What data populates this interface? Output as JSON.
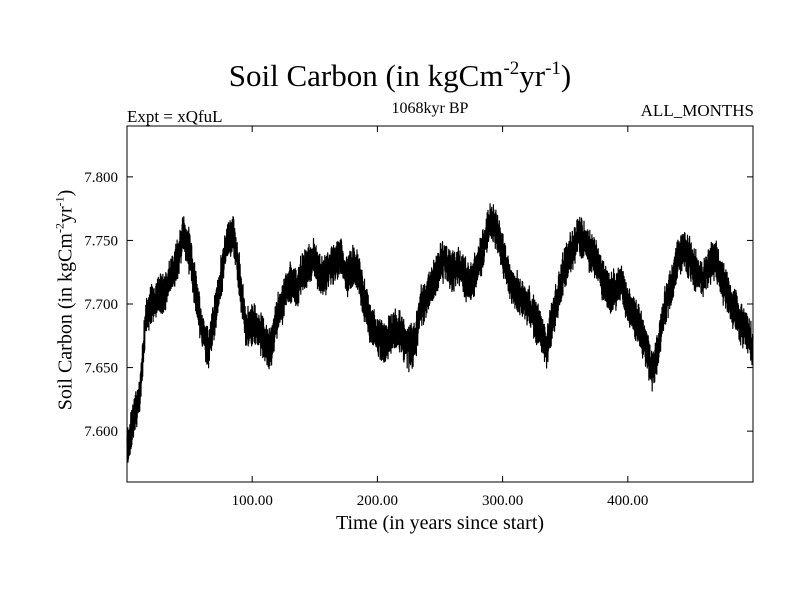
{
  "chart_data": {
    "type": "line",
    "title_main": "Soil Carbon (in kgCm",
    "title_exp1": "-2",
    "title_mid": "yr",
    "title_exp2": "-1",
    "title_end": ")",
    "subtitle_left": "Expt = xQfuL",
    "subtitle_center": "1068kyr BP",
    "subtitle_right": "ALL_MONTHS",
    "xlabel": "Time (in years since start)",
    "ylabel_main": "Soil Carbon (in kgCm",
    "ylabel_exp1": "-2",
    "ylabel_mid": "yr",
    "ylabel_exp2": "-1",
    "ylabel_end": ")",
    "xlim": [
      0,
      500
    ],
    "ylim": [
      7.56,
      7.84
    ],
    "x_ticks": [
      100,
      200,
      300,
      400
    ],
    "x_tick_labels": [
      "100.00",
      "200.00",
      "300.00",
      "400.00"
    ],
    "y_ticks": [
      7.6,
      7.65,
      7.7,
      7.75,
      7.8
    ],
    "y_tick_labels": [
      "7.600",
      "7.650",
      "7.700",
      "7.750",
      "7.800"
    ],
    "series": [
      {
        "name": "Soil Carbon",
        "color": "#000000",
        "x": [
          0,
          5,
          10,
          15,
          20,
          25,
          30,
          35,
          40,
          45,
          50,
          55,
          60,
          65,
          70,
          75,
          80,
          85,
          90,
          95,
          100,
          105,
          110,
          115,
          120,
          125,
          130,
          135,
          140,
          145,
          150,
          155,
          160,
          165,
          170,
          175,
          180,
          185,
          190,
          195,
          200,
          205,
          210,
          215,
          220,
          225,
          230,
          235,
          240,
          245,
          250,
          255,
          260,
          265,
          270,
          275,
          280,
          285,
          290,
          295,
          300,
          305,
          310,
          315,
          320,
          325,
          330,
          335,
          340,
          345,
          350,
          355,
          360,
          365,
          370,
          375,
          380,
          385,
          390,
          395,
          400,
          405,
          410,
          415,
          420,
          425,
          430,
          435,
          440,
          445,
          450,
          455,
          460,
          465,
          470,
          475,
          480,
          485,
          490,
          495,
          500
        ],
        "mean": [
          7.585,
          7.61,
          7.625,
          7.69,
          7.7,
          7.705,
          7.71,
          7.72,
          7.735,
          7.755,
          7.74,
          7.71,
          7.68,
          7.665,
          7.69,
          7.72,
          7.75,
          7.755,
          7.72,
          7.68,
          7.685,
          7.68,
          7.67,
          7.665,
          7.69,
          7.705,
          7.72,
          7.71,
          7.725,
          7.73,
          7.735,
          7.72,
          7.725,
          7.73,
          7.74,
          7.72,
          7.73,
          7.725,
          7.7,
          7.685,
          7.675,
          7.67,
          7.675,
          7.68,
          7.675,
          7.665,
          7.67,
          7.7,
          7.705,
          7.72,
          7.73,
          7.735,
          7.725,
          7.73,
          7.72,
          7.715,
          7.73,
          7.745,
          7.765,
          7.76,
          7.74,
          7.72,
          7.71,
          7.705,
          7.7,
          7.69,
          7.68,
          7.665,
          7.69,
          7.71,
          7.73,
          7.74,
          7.755,
          7.75,
          7.74,
          7.735,
          7.72,
          7.71,
          7.71,
          7.715,
          7.7,
          7.69,
          7.68,
          7.665,
          7.645,
          7.67,
          7.7,
          7.715,
          7.735,
          7.745,
          7.735,
          7.725,
          7.72,
          7.73,
          7.735,
          7.72,
          7.705,
          7.695,
          7.685,
          7.68,
          7.665
        ],
        "spread": 0.03
      }
    ]
  }
}
